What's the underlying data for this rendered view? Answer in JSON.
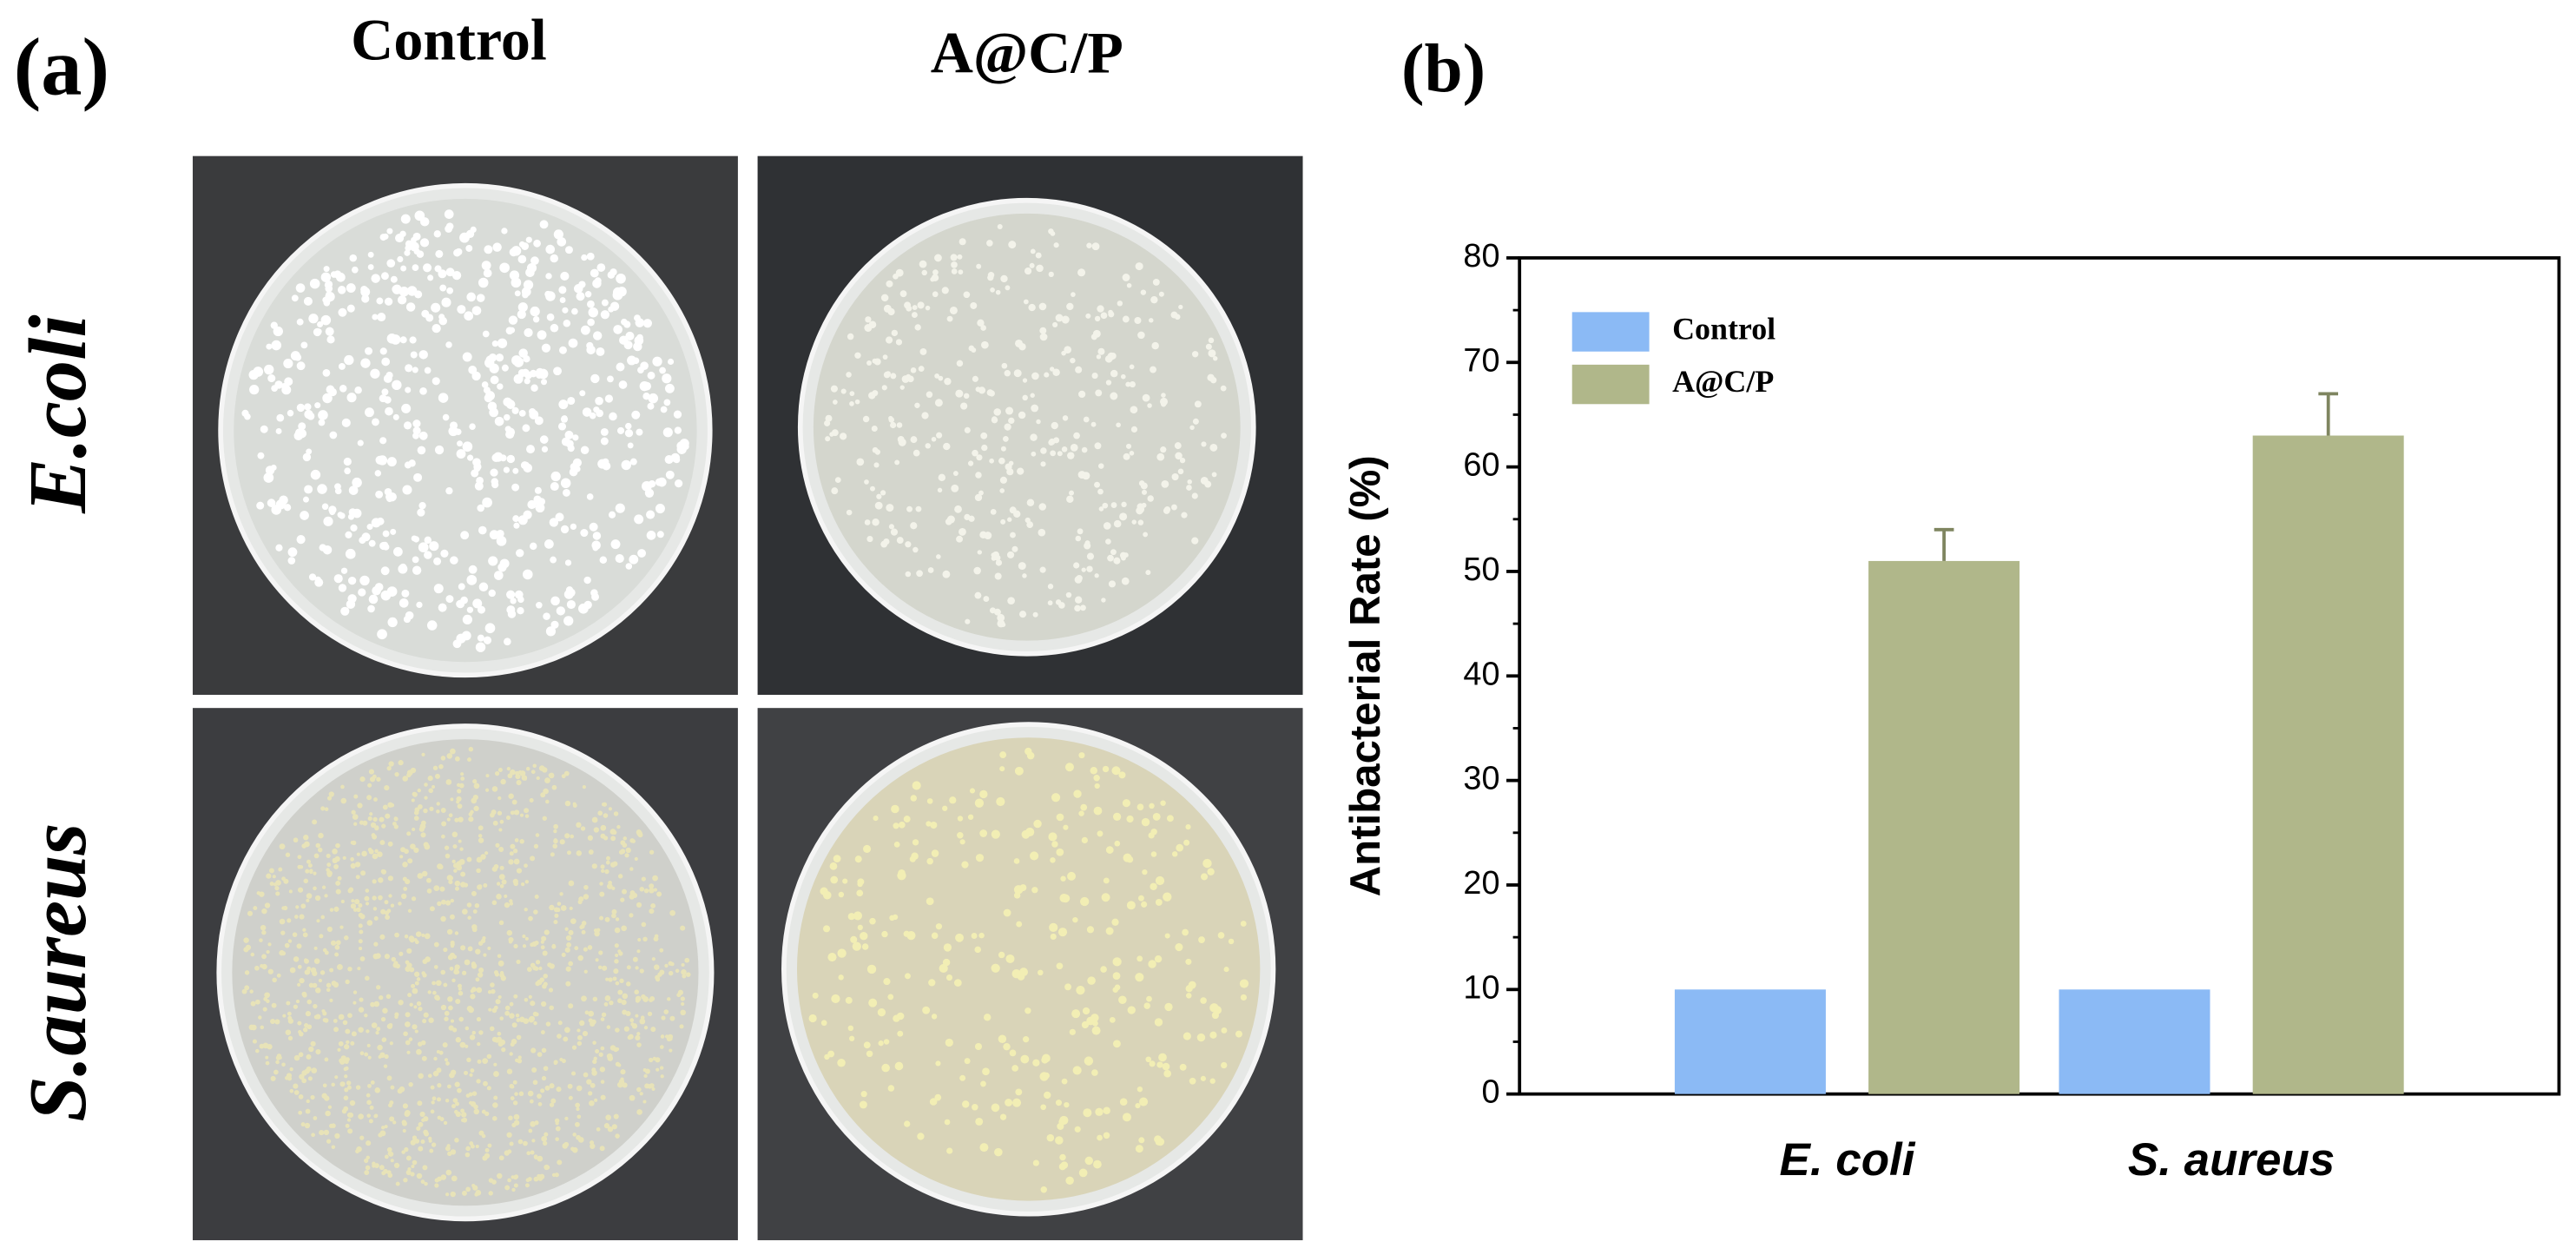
{
  "panel_a": {
    "label": "(a)",
    "columns": [
      "Control",
      "A@C/P"
    ],
    "rows": [
      "E.coli",
      "S.aureus"
    ]
  },
  "panel_b_label": "(b)",
  "chart_data": {
    "type": "bar",
    "ylabel": "Antibacterial Rate (%)",
    "categories": [
      "E. coli",
      "S. aureus"
    ],
    "series": [
      {
        "name": "Control",
        "color": "#8bbaf5",
        "values": [
          10,
          10
        ]
      },
      {
        "name": "A@C/P",
        "color": "#b0b78a",
        "values": [
          51,
          63
        ],
        "errors": [
          3,
          4
        ]
      }
    ],
    "ylim": [
      0,
      80
    ],
    "yticks": [
      0,
      10,
      20,
      30,
      40,
      50,
      60,
      70,
      80
    ],
    "legend": "top-left"
  }
}
